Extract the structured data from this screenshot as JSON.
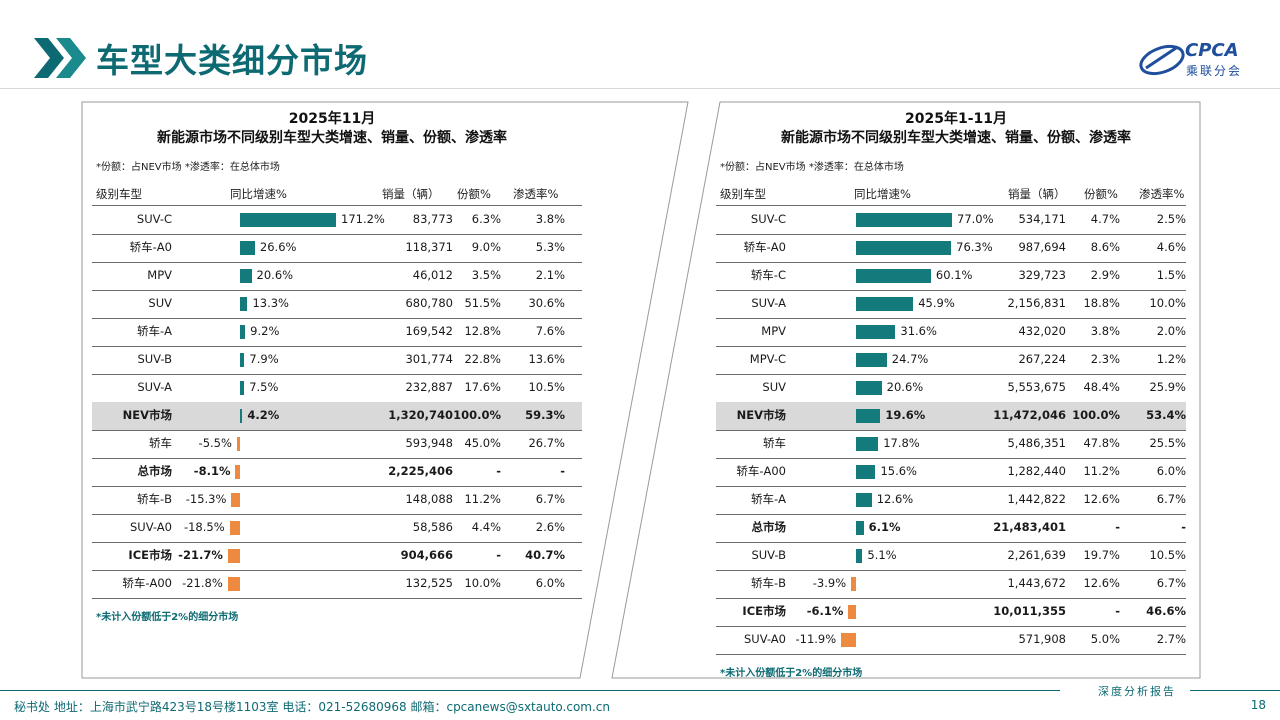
{
  "page": {
    "title": "车型大类细分市场",
    "logo_text": "CPCA",
    "logo_sub": "乘联分会",
    "footer_left": "秘书处   地址：上海市武宁路423号18号楼1103室   电话：021-52680968   邮箱：cpcanews@sxtauto.com.cn",
    "signature": "深度分析报告",
    "page_number": "18"
  },
  "colors": {
    "accent": "#0d6a73",
    "positive_bar": "#147a7c",
    "negative_bar": "#ee8a3f",
    "highlight_row": "#d9d9d9"
  },
  "chart_data": [
    {
      "type": "table",
      "title_line1": "2025年11月",
      "title_line2": "新能源市场不同级别车型大类增速、销量、份额、渗透率",
      "note": "*份额：占NEV市场  *渗透率：在总体市场",
      "footnote": "*未计入份额低于2%的细分市场",
      "columns": [
        "级别车型",
        "同比增速%",
        "销量（辆）",
        "份额%",
        "渗透率%"
      ],
      "bar_max": 171.2,
      "rows": [
        {
          "name": "SUV-C",
          "growth": 171.2,
          "growth_label": "171.2%",
          "sales": "83,773",
          "share": "6.3%",
          "pen": "3.8%"
        },
        {
          "name": "轿车-A0",
          "growth": 26.6,
          "growth_label": "26.6%",
          "sales": "118,371",
          "share": "9.0%",
          "pen": "5.3%"
        },
        {
          "name": "MPV",
          "growth": 20.6,
          "growth_label": "20.6%",
          "sales": "46,012",
          "share": "3.5%",
          "pen": "2.1%"
        },
        {
          "name": "SUV",
          "growth": 13.3,
          "growth_label": "13.3%",
          "sales": "680,780",
          "share": "51.5%",
          "pen": "30.6%"
        },
        {
          "name": "轿车-A",
          "growth": 9.2,
          "growth_label": "9.2%",
          "sales": "169,542",
          "share": "12.8%",
          "pen": "7.6%"
        },
        {
          "name": "SUV-B",
          "growth": 7.9,
          "growth_label": "7.9%",
          "sales": "301,774",
          "share": "22.8%",
          "pen": "13.6%"
        },
        {
          "name": "SUV-A",
          "growth": 7.5,
          "growth_label": "7.5%",
          "sales": "232,887",
          "share": "17.6%",
          "pen": "10.5%"
        },
        {
          "name": "NEV市场",
          "growth": 4.2,
          "growth_label": "4.2%",
          "sales": "1,320,740",
          "share": "100.0%",
          "pen": "59.3%",
          "bold": true,
          "highlight": true
        },
        {
          "name": "轿车",
          "growth": -5.5,
          "growth_label": "-5.5%",
          "sales": "593,948",
          "share": "45.0%",
          "pen": "26.7%"
        },
        {
          "name": "总市场",
          "growth": -8.1,
          "growth_label": "-8.1%",
          "sales": "2,225,406",
          "share": "-",
          "pen": "-",
          "bold": true
        },
        {
          "name": "轿车-B",
          "growth": -15.3,
          "growth_label": "-15.3%",
          "sales": "148,088",
          "share": "11.2%",
          "pen": "6.7%"
        },
        {
          "name": "SUV-A0",
          "growth": -18.5,
          "growth_label": "-18.5%",
          "sales": "58,586",
          "share": "4.4%",
          "pen": "2.6%"
        },
        {
          "name": "ICE市场",
          "growth": -21.7,
          "growth_label": "-21.7%",
          "sales": "904,666",
          "share": "-",
          "pen": "40.7%",
          "bold": true
        },
        {
          "name": "轿车-A00",
          "growth": -21.8,
          "growth_label": "-21.8%",
          "sales": "132,525",
          "share": "10.0%",
          "pen": "6.0%"
        }
      ]
    },
    {
      "type": "table",
      "title_line1": "2025年1-11月",
      "title_line2": "新能源市场不同级别车型大类增速、销量、份额、渗透率",
      "note": "*份额：占NEV市场  *渗透率：在总体市场",
      "footnote": "*未计入份额低于2%的细分市场",
      "columns": [
        "级别车型",
        "同比增速%",
        "销量（辆）",
        "份额%",
        "渗透率%"
      ],
      "bar_max": 77.0,
      "rows": [
        {
          "name": "SUV-C",
          "growth": 77.0,
          "growth_label": "77.0%",
          "sales": "534,171",
          "share": "4.7%",
          "pen": "2.5%"
        },
        {
          "name": "轿车-A0",
          "growth": 76.3,
          "growth_label": "76.3%",
          "sales": "987,694",
          "share": "8.6%",
          "pen": "4.6%"
        },
        {
          "name": "轿车-C",
          "growth": 60.1,
          "growth_label": "60.1%",
          "sales": "329,723",
          "share": "2.9%",
          "pen": "1.5%"
        },
        {
          "name": "SUV-A",
          "growth": 45.9,
          "growth_label": "45.9%",
          "sales": "2,156,831",
          "share": "18.8%",
          "pen": "10.0%"
        },
        {
          "name": "MPV",
          "growth": 31.6,
          "growth_label": "31.6%",
          "sales": "432,020",
          "share": "3.8%",
          "pen": "2.0%"
        },
        {
          "name": "MPV-C",
          "growth": 24.7,
          "growth_label": "24.7%",
          "sales": "267,224",
          "share": "2.3%",
          "pen": "1.2%"
        },
        {
          "name": "SUV",
          "growth": 20.6,
          "growth_label": "20.6%",
          "sales": "5,553,675",
          "share": "48.4%",
          "pen": "25.9%"
        },
        {
          "name": "NEV市场",
          "growth": 19.6,
          "growth_label": "19.6%",
          "sales": "11,472,046",
          "share": "100.0%",
          "pen": "53.4%",
          "bold": true,
          "highlight": true
        },
        {
          "name": "轿车",
          "growth": 17.8,
          "growth_label": "17.8%",
          "sales": "5,486,351",
          "share": "47.8%",
          "pen": "25.5%"
        },
        {
          "name": "轿车-A00",
          "growth": 15.6,
          "growth_label": "15.6%",
          "sales": "1,282,440",
          "share": "11.2%",
          "pen": "6.0%"
        },
        {
          "name": "轿车-A",
          "growth": 12.6,
          "growth_label": "12.6%",
          "sales": "1,442,822",
          "share": "12.6%",
          "pen": "6.7%"
        },
        {
          "name": "总市场",
          "growth": 6.1,
          "growth_label": "6.1%",
          "sales": "21,483,401",
          "share": "-",
          "pen": "-",
          "bold": true
        },
        {
          "name": "SUV-B",
          "growth": 5.1,
          "growth_label": "5.1%",
          "sales": "2,261,639",
          "share": "19.7%",
          "pen": "10.5%"
        },
        {
          "name": "轿车-B",
          "growth": -3.9,
          "growth_label": "-3.9%",
          "sales": "1,443,672",
          "share": "12.6%",
          "pen": "6.7%"
        },
        {
          "name": "ICE市场",
          "growth": -6.1,
          "growth_label": "-6.1%",
          "sales": "10,011,355",
          "share": "-",
          "pen": "46.6%",
          "bold": true
        },
        {
          "name": "SUV-A0",
          "growth": -11.9,
          "growth_label": "-11.9%",
          "sales": "571,908",
          "share": "5.0%",
          "pen": "2.7%"
        }
      ]
    }
  ]
}
